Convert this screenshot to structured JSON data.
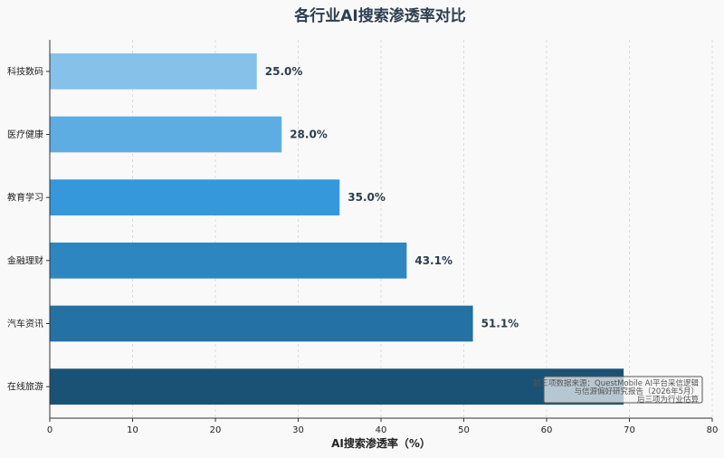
{
  "chart_data": {
    "type": "bar",
    "orientation": "horizontal",
    "title": "各行业AI搜索渗透率对比",
    "xlabel": "AI搜索渗透率（%）",
    "ylabel": "",
    "xlim": [
      0,
      80
    ],
    "xticks": [
      0,
      10,
      20,
      30,
      40,
      50,
      60,
      70,
      80
    ],
    "grid": "vertical dashed",
    "categories": [
      "科技数码",
      "医疗健康",
      "教育学习",
      "金融理财",
      "汽车资讯",
      "在线旅游"
    ],
    "values": [
      25.0,
      28.0,
      35.0,
      43.1,
      51.1,
      69.3
    ],
    "value_labels": [
      "25.0%",
      "28.0%",
      "35.0%",
      "43.1%",
      "51.1%",
      ""
    ],
    "colors": [
      "#85c1e9",
      "#5dade2",
      "#3498db",
      "#2e86c1",
      "#2471a3",
      "#1a5276"
    ],
    "annotation_lines": [
      "前三项数据来源：QuestMobile AI平台采信逻辑",
      "与信源偏好研究报告（2026年5月）",
      "后三项为行业估算"
    ],
    "annotation_placement": "bottom-right"
  }
}
